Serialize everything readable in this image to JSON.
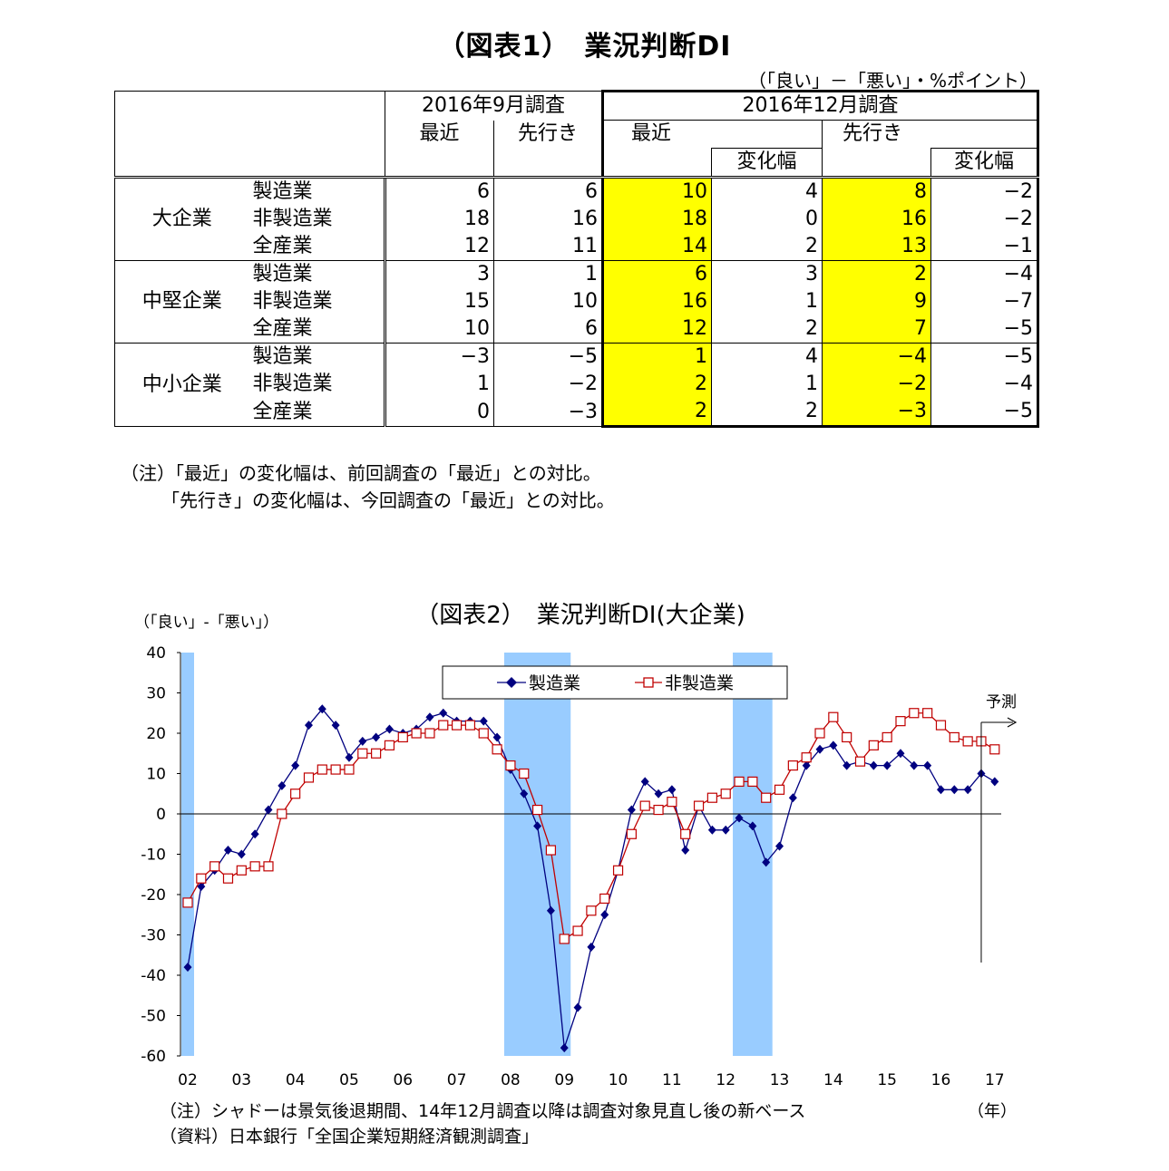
{
  "table": {
    "title": "（図表1）　業況判断DI",
    "unit": "（「良い」－「悪い」・%ポイント）",
    "header": {
      "survey_sep": "2016年9月調査",
      "survey_dec": "2016年12月調査",
      "recent": "最近",
      "outlook": "先行き",
      "change": "変化幅"
    },
    "groups": [
      {
        "name": "大企業",
        "rows": [
          {
            "industry": "製造業",
            "sep_recent": "6",
            "sep_outlook": "6",
            "dec_recent": "10",
            "dec_recent_change": "4",
            "dec_outlook": "8",
            "dec_outlook_change": "−2"
          },
          {
            "industry": "非製造業",
            "sep_recent": "18",
            "sep_outlook": "16",
            "dec_recent": "18",
            "dec_recent_change": "0",
            "dec_outlook": "16",
            "dec_outlook_change": "−2"
          },
          {
            "industry": "全産業",
            "sep_recent": "12",
            "sep_outlook": "11",
            "dec_recent": "14",
            "dec_recent_change": "2",
            "dec_outlook": "13",
            "dec_outlook_change": "−1"
          }
        ]
      },
      {
        "name": "中堅企業",
        "rows": [
          {
            "industry": "製造業",
            "sep_recent": "3",
            "sep_outlook": "1",
            "dec_recent": "6",
            "dec_recent_change": "3",
            "dec_outlook": "2",
            "dec_outlook_change": "−4"
          },
          {
            "industry": "非製造業",
            "sep_recent": "15",
            "sep_outlook": "10",
            "dec_recent": "16",
            "dec_recent_change": "1",
            "dec_outlook": "9",
            "dec_outlook_change": "−7"
          },
          {
            "industry": "全産業",
            "sep_recent": "10",
            "sep_outlook": "6",
            "dec_recent": "12",
            "dec_recent_change": "2",
            "dec_outlook": "7",
            "dec_outlook_change": "−5"
          }
        ]
      },
      {
        "name": "中小企業",
        "rows": [
          {
            "industry": "製造業",
            "sep_recent": "−3",
            "sep_outlook": "−5",
            "dec_recent": "1",
            "dec_recent_change": "4",
            "dec_outlook": "−4",
            "dec_outlook_change": "−5"
          },
          {
            "industry": "非製造業",
            "sep_recent": "1",
            "sep_outlook": "−2",
            "dec_recent": "2",
            "dec_recent_change": "1",
            "dec_outlook": "−2",
            "dec_outlook_change": "−4"
          },
          {
            "industry": "全産業",
            "sep_recent": "0",
            "sep_outlook": "−3",
            "dec_recent": "2",
            "dec_recent_change": "2",
            "dec_outlook": "−3",
            "dec_outlook_change": "−5"
          }
        ]
      }
    ],
    "highlight_color": "#ffff00",
    "notes": [
      "（注）「最近」の変化幅は、前回調査の「最近」との対比。",
      "「先行き」の変化幅は、今回調査の「最近」との対比。"
    ]
  },
  "chart_data": {
    "type": "line",
    "title": "（図表2）　業況判断DI(大企業)",
    "ylabel": "（「良い」-「悪い」）",
    "xlabel": "（年）",
    "ylim": [
      -60,
      40
    ],
    "yticks": [
      40,
      30,
      20,
      10,
      0,
      -10,
      -20,
      -30,
      -40,
      -50,
      -60
    ],
    "x_tick_labels": [
      "02",
      "03",
      "04",
      "05",
      "06",
      "07",
      "08",
      "09",
      "10",
      "11",
      "12",
      "13",
      "14",
      "15",
      "16",
      "17"
    ],
    "x_start": "2002Q1",
    "x_step": "quarter",
    "grid": false,
    "legend_position": "top-center",
    "shaded_periods": [
      [
        "2002Q1",
        "2002Q1"
      ],
      [
        "2008Q1",
        "2009Q1"
      ],
      [
        "2012Q2",
        "2012Q4"
      ]
    ],
    "shade_color": "#99ccff",
    "forecast_label": "予測",
    "series": [
      {
        "name": "製造業",
        "color": "#000080",
        "marker": "diamond",
        "values": [
          -38,
          -18,
          -14,
          -9,
          -10,
          -5,
          1,
          7,
          12,
          22,
          26,
          22,
          14,
          18,
          19,
          21,
          20,
          21,
          24,
          25,
          23,
          23,
          23,
          19,
          11,
          5,
          -3,
          -24,
          -58,
          -48,
          -33,
          -25,
          -14,
          1,
          8,
          5,
          6,
          -9,
          2,
          -4,
          -4,
          -1,
          -3,
          -12,
          -8,
          4,
          12,
          16,
          17,
          12,
          13,
          12,
          12,
          15,
          12,
          12,
          6,
          6,
          6,
          10,
          8
        ]
      },
      {
        "name": "非製造業",
        "color": "#c00000",
        "marker": "square-open",
        "values": [
          -22,
          -16,
          -13,
          -16,
          -14,
          -13,
          -13,
          0,
          5,
          9,
          11,
          11,
          11,
          15,
          15,
          17,
          19,
          20,
          20,
          22,
          22,
          22,
          20,
          16,
          12,
          10,
          1,
          -9,
          -31,
          -29,
          -24,
          -21,
          -14,
          -5,
          2,
          1,
          3,
          -5,
          2,
          4,
          5,
          8,
          8,
          4,
          6,
          12,
          14,
          20,
          24,
          19,
          13,
          17,
          19,
          23,
          25,
          25,
          22,
          19,
          18,
          18,
          16
        ]
      }
    ]
  },
  "chart_notes": [
    "（注）シャドーは景気後退期間、14年12月調査以降は調査対象見直し後の新ベース",
    "（資料）日本銀行「全国企業短期経済観測調査」"
  ]
}
